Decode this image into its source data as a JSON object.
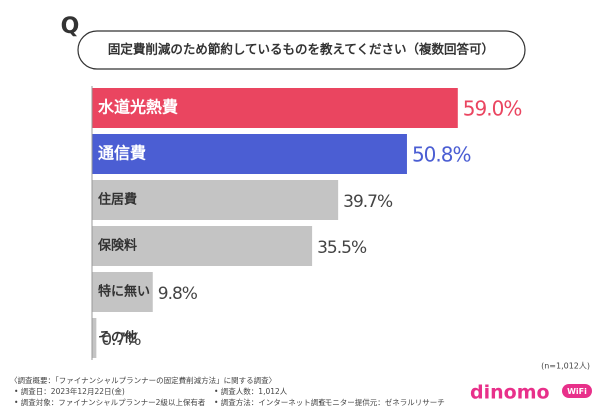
{
  "chart_data": {
    "type": "bar",
    "orientation": "horizontal",
    "marker": "Q",
    "title": "固定費削減のため節約しているものを教えてください（複数回答可）",
    "categories": [
      "水道光熱費",
      "通信費",
      "住居費",
      "保険料",
      "特に無い",
      "その他"
    ],
    "values": [
      59.0,
      50.8,
      39.7,
      35.5,
      9.8,
      0.7
    ],
    "value_labels": [
      "59.0%",
      "50.8%",
      "39.7%",
      "35.5%",
      "9.8%",
      "0.7%"
    ],
    "colors": [
      "#ea4560",
      "#4b5ed3",
      "#c4c4c4",
      "#c4c4c4",
      "#c4c4c4",
      "#c4c4c4"
    ],
    "note": "(n=1,012人)",
    "footnotes": [
      "〈調査概要：「ファイナンシャルプランナーの固定費削減方法」に関する調査〉",
      "• 調査日：2023年12月22日(金)",
      "• 調査人数：1,012人",
      "• 調査対象：ファイナンシャルプランナー2級以上保有者",
      "• 調査方法：インターネット調査",
      "• モニター提供元：ゼネラルリサーチ"
    ]
  },
  "logo": {
    "name": "dinomo",
    "badge": "WiFi"
  }
}
